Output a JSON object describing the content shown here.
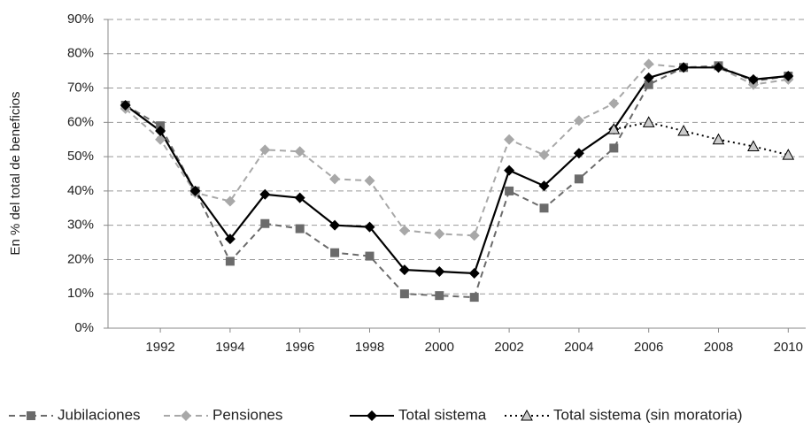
{
  "chart_data": {
    "type": "line",
    "y_label": "En % del total de beneficios",
    "x": [
      1991,
      1992,
      1993,
      1994,
      1995,
      1996,
      1997,
      1998,
      1999,
      2000,
      2001,
      2002,
      2003,
      2004,
      2005,
      2006,
      2007,
      2008,
      2009,
      2010
    ],
    "xlim": [
      1990.5,
      2010.5
    ],
    "xticks": [
      1992,
      1994,
      1996,
      1998,
      2000,
      2002,
      2004,
      2006,
      2008,
      2010
    ],
    "ylim": [
      0,
      90
    ],
    "yticks": [
      {
        "value": 0,
        "label": "0%"
      },
      {
        "value": 10,
        "label": "10%"
      },
      {
        "value": 20,
        "label": "20%"
      },
      {
        "value": 30,
        "label": "30%"
      },
      {
        "value": 40,
        "label": "40%"
      },
      {
        "value": 50,
        "label": "50%"
      },
      {
        "value": 60,
        "label": "60%"
      },
      {
        "value": 70,
        "label": "70%"
      },
      {
        "value": 80,
        "label": "80%"
      },
      {
        "value": 90,
        "label": "90%"
      }
    ],
    "grid": true,
    "legend": "bottom",
    "series": [
      {
        "name": "Jubilaciones",
        "color": "#6b6b6b",
        "dash": "dashed",
        "marker": "square",
        "values": [
          65,
          59,
          40,
          19.5,
          30.5,
          29,
          22,
          21,
          10,
          9.5,
          9,
          40,
          35,
          43.5,
          52.5,
          71,
          76,
          76.5,
          72,
          73.5
        ]
      },
      {
        "name": "Pensiones",
        "color": "#a8a8a8",
        "dash": "dashed",
        "marker": "diamond",
        "values": [
          64,
          55,
          39.5,
          37,
          52,
          51.5,
          43.5,
          43,
          28.5,
          27.5,
          27,
          55,
          50.5,
          60.5,
          65.5,
          77,
          76,
          76,
          71,
          72.5
        ]
      },
      {
        "name": "Total sistema",
        "color": "#000000",
        "dash": "solid",
        "marker": "diamond",
        "values": [
          65,
          57.5,
          40,
          26,
          39,
          38,
          30,
          29.5,
          17,
          16.5,
          16,
          46,
          41.5,
          51,
          58,
          73,
          76,
          76,
          72.5,
          73.5
        ]
      },
      {
        "name": "Total sistema (sin moratoria)",
        "color": "#000000",
        "dash": "dotted",
        "marker": "triangle",
        "values": [
          null,
          null,
          null,
          null,
          null,
          null,
          null,
          null,
          null,
          null,
          null,
          null,
          null,
          null,
          58,
          60,
          57.5,
          55,
          53,
          50.5
        ]
      }
    ]
  }
}
